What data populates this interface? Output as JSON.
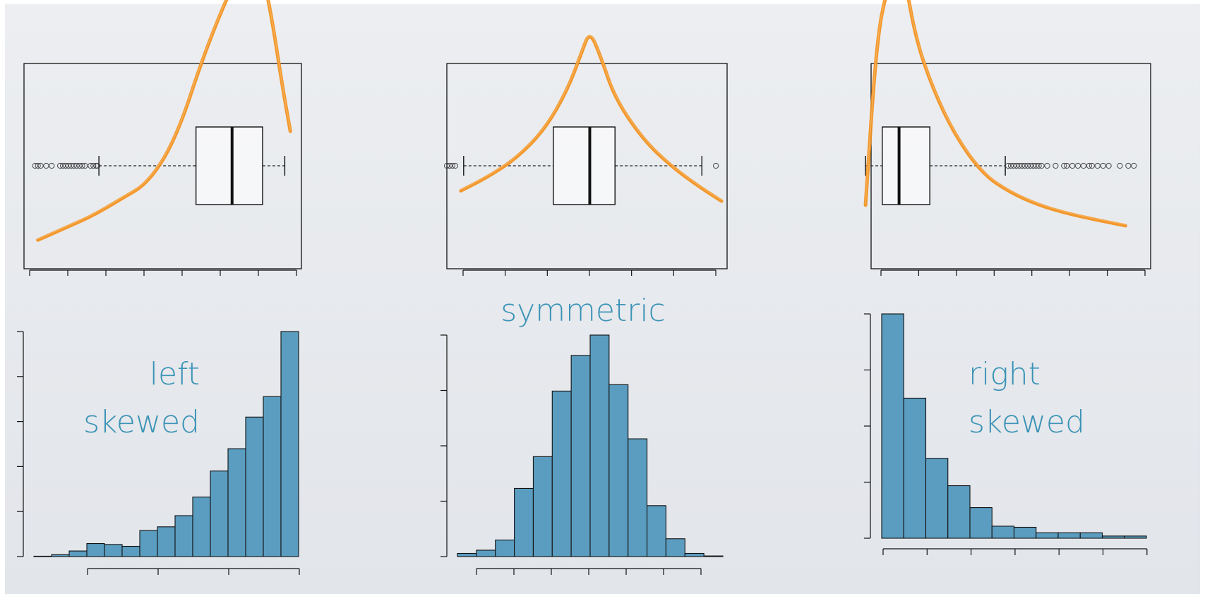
{
  "colors": {
    "background_top": "#eceef1",
    "background_bottom": "#e2e5ea",
    "bar_fill": "#5b9dc0",
    "bar_stroke": "#111111",
    "curve": "#f2901c",
    "label": "#3b93b6",
    "axis": "#111111"
  },
  "chart_data": [
    {
      "type": "boxplot",
      "panel": "left",
      "y_ticks": 8,
      "box": {
        "q1": 0.62,
        "median": 0.75,
        "q3": 0.86,
        "whisker_low": 0.27,
        "whisker_high": 0.94
      },
      "outliers": [
        0.04,
        0.05,
        0.06,
        0.08,
        0.1,
        0.13,
        0.14,
        0.15,
        0.16,
        0.17,
        0.18,
        0.19,
        0.2,
        0.21,
        0.22,
        0.24,
        0.25,
        0.26,
        0.265
      ],
      "density_curve": [
        [
          0.05,
          0.86
        ],
        [
          0.15,
          0.8
        ],
        [
          0.25,
          0.74
        ],
        [
          0.35,
          0.66
        ],
        [
          0.45,
          0.58
        ],
        [
          0.55,
          0.36
        ],
        [
          0.65,
          -0.05
        ],
        [
          0.75,
          -0.38
        ],
        [
          0.8,
          -0.48
        ],
        [
          0.85,
          -0.5
        ],
        [
          0.89,
          -0.25
        ],
        [
          0.93,
          0.1
        ],
        [
          0.96,
          0.33
        ]
      ]
    },
    {
      "type": "boxplot",
      "panel": "center",
      "y_ticks": 7,
      "box": {
        "q1": 0.38,
        "median": 0.51,
        "q3": 0.6,
        "whisker_low": 0.06,
        "whisker_high": 0.91
      },
      "outliers": [
        0.0,
        0.01,
        0.02,
        0.03,
        0.96
      ],
      "density_curve": [
        [
          0.05,
          0.62
        ],
        [
          0.15,
          0.55
        ],
        [
          0.25,
          0.46
        ],
        [
          0.35,
          0.32
        ],
        [
          0.43,
          0.13
        ],
        [
          0.48,
          -0.05
        ],
        [
          0.51,
          -0.16
        ],
        [
          0.55,
          -0.03
        ],
        [
          0.6,
          0.17
        ],
        [
          0.7,
          0.37
        ],
        [
          0.8,
          0.5
        ],
        [
          0.9,
          0.6
        ],
        [
          0.98,
          0.67
        ]
      ]
    },
    {
      "type": "boxplot",
      "panel": "right",
      "y_ticks": 8,
      "box": {
        "q1": 0.04,
        "median": 0.1,
        "q3": 0.21,
        "whisker_low": -0.02,
        "whisker_high": 0.48
      },
      "outliers": [
        0.49,
        0.5,
        0.51,
        0.52,
        0.53,
        0.54,
        0.55,
        0.56,
        0.57,
        0.58,
        0.59,
        0.6,
        0.61,
        0.63,
        0.66,
        0.69,
        0.7,
        0.72,
        0.74,
        0.76,
        0.78,
        0.79,
        0.81,
        0.83,
        0.85,
        0.89,
        0.92,
        0.94
      ],
      "density_curve": [
        [
          -0.02,
          0.69
        ],
        [
          0.02,
          -0.12
        ],
        [
          0.06,
          -0.38
        ],
        [
          0.09,
          -0.45
        ],
        [
          0.12,
          -0.42
        ],
        [
          0.16,
          -0.12
        ],
        [
          0.22,
          0.12
        ],
        [
          0.3,
          0.35
        ],
        [
          0.4,
          0.54
        ],
        [
          0.5,
          0.63
        ],
        [
          0.6,
          0.69
        ],
        [
          0.7,
          0.73
        ],
        [
          0.8,
          0.76
        ],
        [
          0.91,
          0.79
        ]
      ]
    },
    {
      "type": "bar",
      "panel": "left",
      "label_lines": [
        "left",
        "skewed"
      ],
      "y_ticks": 6,
      "x_ticks": 4,
      "values": [
        0.2,
        1,
        3,
        7,
        6.5,
        5.5,
        14,
        16,
        22,
        32,
        46,
        58,
        75,
        86,
        121
      ]
    },
    {
      "type": "bar",
      "panel": "center",
      "label": "symmetric",
      "y_ticks": 5,
      "x_ticks": 7,
      "values": [
        5,
        10,
        26,
        107,
        157,
        260,
        316,
        348,
        270,
        185,
        80,
        28,
        5,
        1
      ]
    },
    {
      "type": "bar",
      "panel": "right",
      "label_lines": [
        "right",
        "skewed"
      ],
      "y_ticks": 5,
      "x_ticks": 7,
      "values": [
        205,
        128,
        73,
        48,
        28,
        11,
        10,
        5,
        5,
        5,
        2,
        2
      ]
    }
  ]
}
